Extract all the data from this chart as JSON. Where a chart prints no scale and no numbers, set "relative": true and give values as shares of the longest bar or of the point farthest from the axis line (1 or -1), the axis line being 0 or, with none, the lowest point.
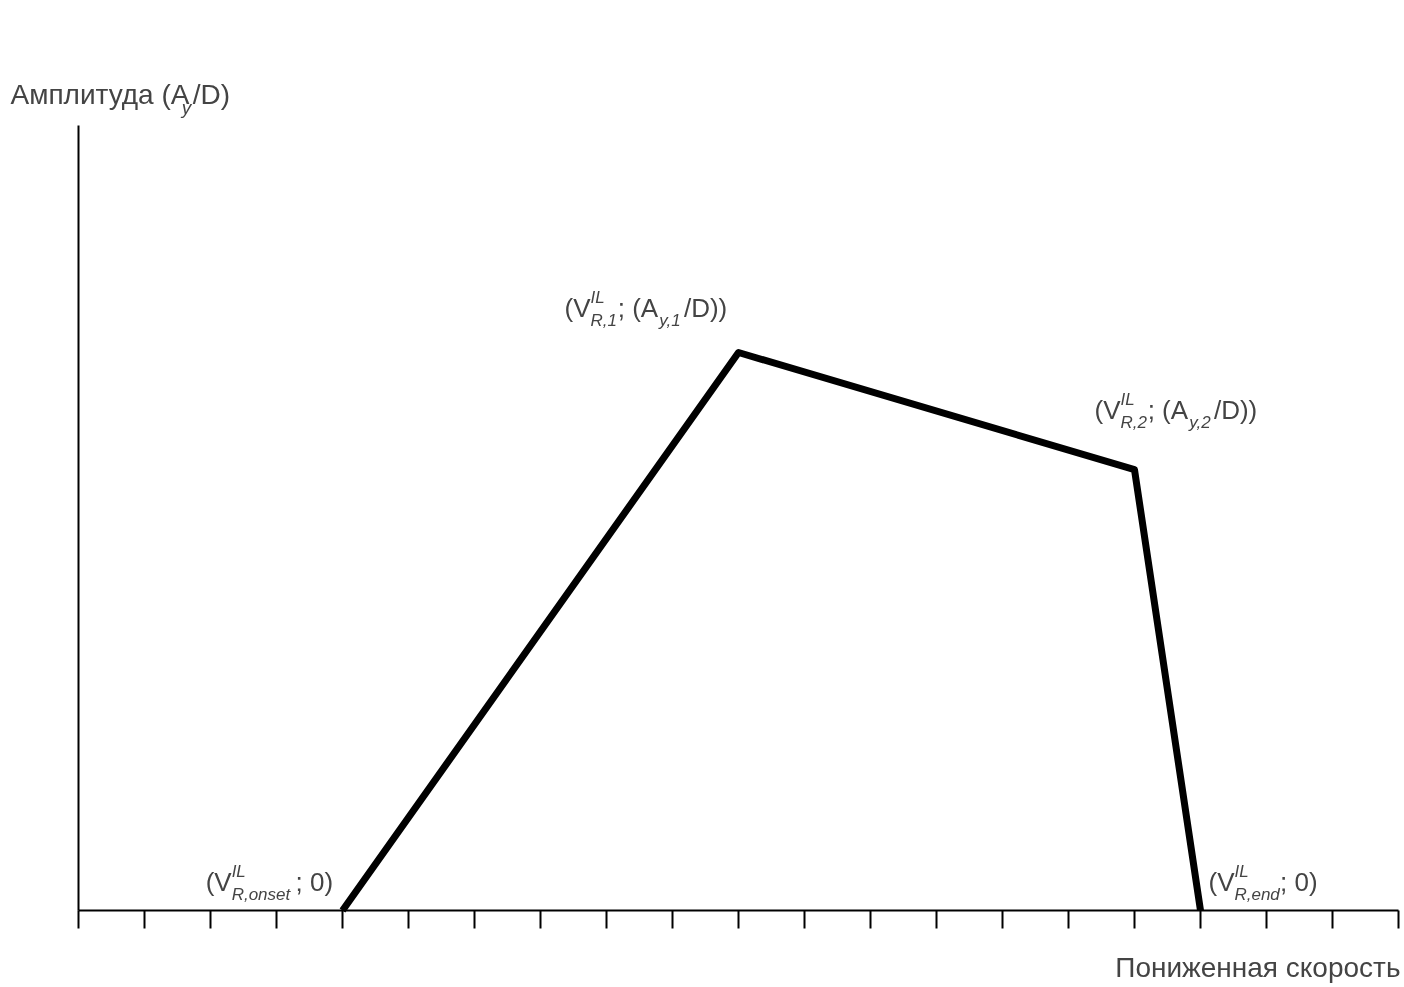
{
  "chart_data": {
    "type": "line",
    "relative": true,
    "xlabel": "Пониженная скорость",
    "categories": [
      null,
      null,
      null,
      null,
      null,
      null,
      null,
      null,
      null,
      null,
      null,
      null,
      null,
      null,
      null,
      null,
      null,
      null,
      null,
      null,
      null
    ],
    "series": [
      {
        "color": "#000000",
        "values": [
          null,
          null,
          null,
          null,
          0,
          null,
          null,
          null,
          null,
          null,
          1,
          null,
          null,
          null,
          null,
          null,
          0.79,
          0,
          null,
          null,
          null
        ]
      }
    ],
    "annotations": [
      "(V$^{IL}$$_{R,onset}$; 0)",
      "(V$^{IL}$$_{R,1}$; (A$_{y,1}$/D))",
      "(V$^{IL}$$_{R,2}$; (A$_{y,2}$/D))",
      "(V$^{IL}$$_{R,end}$; 0)",
      "Амплитуда (A$_{y}$/D)"
    ],
    "grid": false,
    "marker": "none",
    "line_style": "solid"
  }
}
